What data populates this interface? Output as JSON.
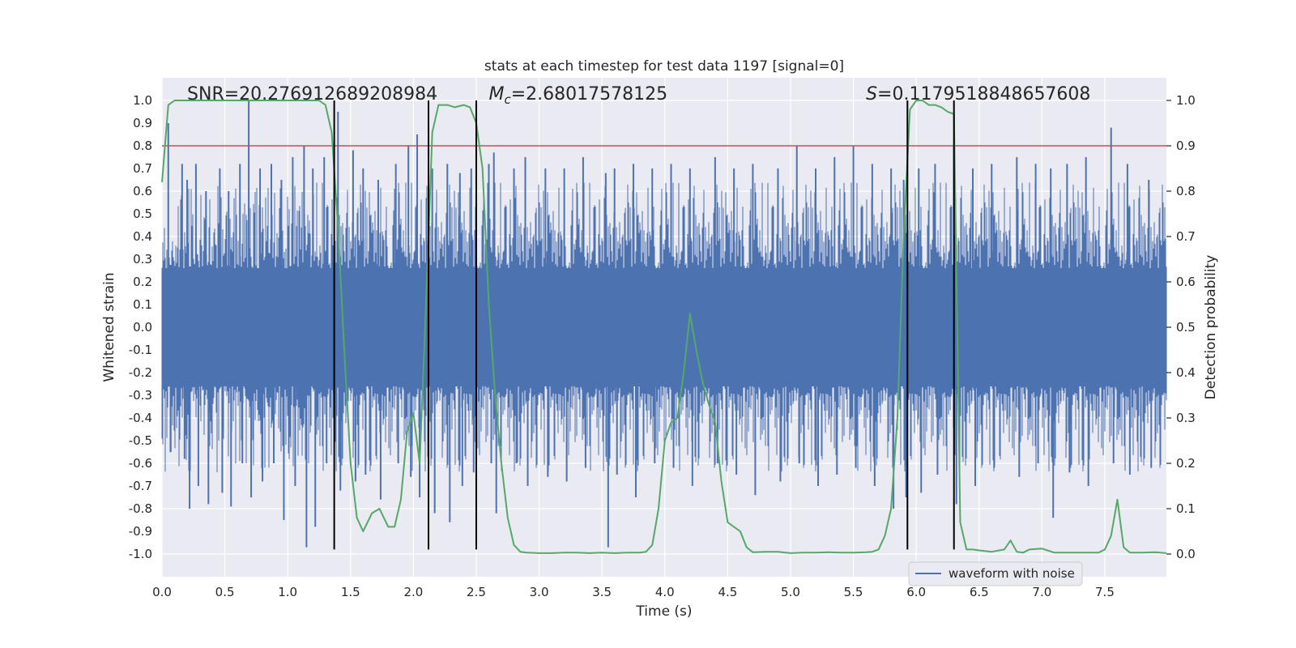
{
  "chart_data": {
    "type": "line",
    "title": "stats at each timestep for test data 1197 [signal=0]",
    "xlabel": "Time (s)",
    "ylabel": "Whitened strain",
    "y2label": "Detection probability",
    "xlim": [
      0.0,
      7.99
    ],
    "ylim": [
      -1.1,
      1.1
    ],
    "y2lim": [
      -0.05,
      1.05
    ],
    "xticks": [
      0.0,
      0.5,
      1.0,
      1.5,
      2.0,
      2.5,
      3.0,
      3.5,
      4.0,
      4.5,
      5.0,
      5.5,
      6.0,
      6.5,
      7.0,
      7.5
    ],
    "xtick_labels": [
      "0.0",
      "0.5",
      "1.0",
      "1.5",
      "2.0",
      "2.5",
      "3.0",
      "3.5",
      "4.0",
      "4.5",
      "5.0",
      "5.5",
      "6.0",
      "6.5",
      "7.0",
      "7.5"
    ],
    "yticks": [
      -1.0,
      -0.9,
      -0.8,
      -0.7,
      -0.6,
      -0.5,
      -0.4,
      -0.3,
      -0.2,
      -0.1,
      0.0,
      0.1,
      0.2,
      0.3,
      0.4,
      0.5,
      0.6,
      0.7,
      0.8,
      0.9,
      1.0
    ],
    "ytick_labels": [
      "-1.0",
      "-0.9",
      "-0.8",
      "-0.7",
      "-0.6",
      "-0.5",
      "-0.4",
      "-0.3",
      "-0.2",
      "-0.1",
      "0.0",
      "0.1",
      "0.2",
      "0.3",
      "0.4",
      "0.5",
      "0.6",
      "0.7",
      "0.8",
      "0.9",
      "1.0"
    ],
    "y2ticks": [
      0.0,
      0.1,
      0.2,
      0.3,
      0.4,
      0.5,
      0.6,
      0.7,
      0.8,
      0.9,
      1.0
    ],
    "y2tick_labels": [
      "0.0",
      "0.1",
      "0.2",
      "0.3",
      "0.4",
      "0.5",
      "0.6",
      "0.7",
      "0.8",
      "0.9",
      "1.0"
    ],
    "grid": true,
    "legend": {
      "position": "lower-right",
      "entries": [
        "waveform with noise"
      ]
    },
    "annotations": [
      {
        "text_plain": "SNR=20.276912689208984",
        "x": 0.2,
        "y": 1.0
      },
      {
        "symbol": "M",
        "subscript": "c",
        "rest": "=2.68017578125",
        "x": 2.6,
        "y": 1.0
      },
      {
        "symbol": "S",
        "subscript": "",
        "rest": "=0.1179518848657608",
        "x": 5.6,
        "y": 1.0
      }
    ],
    "threshold": {
      "axis": "y2",
      "value": 0.9,
      "color": "#c44e52"
    },
    "vertical_lines": [
      1.37,
      2.12,
      2.5,
      5.93,
      6.3
    ],
    "series": [
      {
        "name": "waveform with noise",
        "axis": "y",
        "color": "#4c72b0",
        "envelope_spikes": [
          [
            0.05,
            0.9,
            -0.55
          ],
          [
            0.16,
            0.72,
            -0.58
          ],
          [
            0.2,
            0.65,
            -0.8
          ],
          [
            0.27,
            0.72,
            -0.7
          ],
          [
            0.35,
            0.6,
            -0.78
          ],
          [
            0.46,
            0.7,
            -0.73
          ],
          [
            0.53,
            0.6,
            -0.79
          ],
          [
            0.62,
            0.72,
            -0.6
          ],
          [
            0.69,
            1.0,
            -0.75
          ],
          [
            0.78,
            0.7,
            -0.68
          ],
          [
            0.87,
            0.72,
            -0.6
          ],
          [
            0.95,
            0.65,
            -0.85
          ],
          [
            1.04,
            0.75,
            -0.7
          ],
          [
            1.13,
            0.8,
            -0.97
          ],
          [
            1.2,
            0.7,
            -0.88
          ],
          [
            1.29,
            0.75,
            -0.6
          ],
          [
            1.4,
            0.95,
            -0.72
          ],
          [
            1.52,
            0.78,
            -0.68
          ],
          [
            1.6,
            0.7,
            -0.65
          ],
          [
            1.72,
            0.65,
            -0.76
          ],
          [
            1.86,
            0.72,
            -0.6
          ],
          [
            1.96,
            0.8,
            -0.66
          ],
          [
            2.03,
            0.85,
            -0.75
          ],
          [
            2.15,
            0.7,
            -0.82
          ],
          [
            2.27,
            0.72,
            -0.86
          ],
          [
            2.37,
            0.68,
            -0.7
          ],
          [
            2.46,
            0.7,
            -0.64
          ],
          [
            2.6,
            0.72,
            -0.6
          ],
          [
            2.64,
            0.77,
            -0.82
          ],
          [
            2.8,
            0.7,
            -0.6
          ],
          [
            2.89,
            0.75,
            -0.7
          ],
          [
            3.05,
            0.7,
            -0.66
          ],
          [
            3.2,
            0.7,
            -0.68
          ],
          [
            3.35,
            0.75,
            -0.62
          ],
          [
            3.53,
            0.68,
            -0.97
          ],
          [
            3.6,
            0.7,
            -0.65
          ],
          [
            3.75,
            0.72,
            -0.75
          ],
          [
            3.9,
            0.7,
            -0.6
          ],
          [
            4.05,
            0.72,
            -0.62
          ],
          [
            4.2,
            0.7,
            -0.7
          ],
          [
            4.4,
            0.75,
            -0.6
          ],
          [
            4.55,
            0.7,
            -0.65
          ],
          [
            4.7,
            0.72,
            -0.74
          ],
          [
            4.9,
            0.7,
            -0.68
          ],
          [
            5.05,
            0.8,
            -0.6
          ],
          [
            5.2,
            0.7,
            -0.7
          ],
          [
            5.35,
            0.75,
            -0.65
          ],
          [
            5.5,
            0.8,
            -0.62
          ],
          [
            5.65,
            0.72,
            -0.7
          ],
          [
            5.8,
            0.7,
            -0.8
          ],
          [
            5.9,
            0.65,
            -0.75
          ],
          [
            6.02,
            0.7,
            -0.73
          ],
          [
            6.15,
            0.72,
            -0.65
          ],
          [
            6.3,
            0.8,
            -0.78
          ],
          [
            6.45,
            0.7,
            -0.7
          ],
          [
            6.6,
            0.72,
            -0.62
          ],
          [
            6.8,
            0.75,
            -0.66
          ],
          [
            6.95,
            0.72,
            -0.6
          ],
          [
            7.07,
            0.7,
            -0.84
          ],
          [
            7.2,
            0.72,
            -0.64
          ],
          [
            7.35,
            0.75,
            -0.7
          ],
          [
            7.55,
            0.88,
            -0.6
          ],
          [
            7.68,
            0.72,
            -0.65
          ],
          [
            7.85,
            0.65,
            -0.62
          ]
        ]
      },
      {
        "name": "detection probability",
        "axis": "y2",
        "color": "#55a868",
        "x": [
          0.0,
          0.05,
          0.1,
          0.15,
          0.2,
          0.3,
          0.4,
          0.5,
          0.6,
          0.7,
          0.8,
          0.9,
          1.0,
          1.1,
          1.2,
          1.25,
          1.3,
          1.35,
          1.4,
          1.45,
          1.5,
          1.55,
          1.6,
          1.67,
          1.73,
          1.8,
          1.85,
          1.9,
          1.95,
          2.0,
          2.05,
          2.1,
          2.15,
          2.2,
          2.27,
          2.33,
          2.4,
          2.45,
          2.5,
          2.55,
          2.6,
          2.65,
          2.7,
          2.75,
          2.8,
          2.85,
          2.9,
          3.0,
          3.1,
          3.2,
          3.3,
          3.4,
          3.5,
          3.6,
          3.7,
          3.8,
          3.85,
          3.9,
          3.95,
          4.0,
          4.05,
          4.1,
          4.15,
          4.2,
          4.25,
          4.3,
          4.35,
          4.4,
          4.45,
          4.5,
          4.55,
          4.6,
          4.65,
          4.7,
          4.8,
          4.9,
          5.0,
          5.1,
          5.2,
          5.3,
          5.4,
          5.5,
          5.6,
          5.65,
          5.7,
          5.75,
          5.8,
          5.85,
          5.9,
          5.95,
          6.0,
          6.05,
          6.1,
          6.15,
          6.2,
          6.25,
          6.3,
          6.35,
          6.4,
          6.45,
          6.5,
          6.6,
          6.7,
          6.75,
          6.8,
          6.85,
          6.9,
          7.0,
          7.1,
          7.2,
          7.3,
          7.4,
          7.45,
          7.5,
          7.55,
          7.6,
          7.65,
          7.7,
          7.8,
          7.9,
          7.99
        ],
        "y": [
          0.82,
          0.99,
          1.0,
          1.0,
          1.0,
          1.0,
          1.0,
          1.0,
          1.0,
          1.0,
          1.0,
          1.0,
          1.0,
          1.0,
          1.0,
          1.0,
          0.99,
          0.93,
          0.72,
          0.45,
          0.2,
          0.08,
          0.05,
          0.09,
          0.1,
          0.06,
          0.06,
          0.12,
          0.27,
          0.31,
          0.2,
          0.55,
          0.93,
          0.99,
          0.99,
          0.985,
          0.99,
          0.985,
          0.95,
          0.85,
          0.55,
          0.35,
          0.2,
          0.08,
          0.02,
          0.005,
          0.003,
          0.002,
          0.002,
          0.003,
          0.003,
          0.002,
          0.003,
          0.002,
          0.003,
          0.003,
          0.005,
          0.02,
          0.1,
          0.25,
          0.29,
          0.3,
          0.4,
          0.53,
          0.45,
          0.38,
          0.33,
          0.29,
          0.16,
          0.07,
          0.06,
          0.05,
          0.015,
          0.004,
          0.005,
          0.005,
          0.002,
          0.003,
          0.003,
          0.004,
          0.003,
          0.003,
          0.004,
          0.005,
          0.01,
          0.04,
          0.1,
          0.3,
          0.7,
          0.98,
          1.0,
          1.0,
          0.99,
          0.99,
          0.985,
          0.975,
          0.97,
          0.07,
          0.01,
          0.01,
          0.008,
          0.005,
          0.01,
          0.03,
          0.005,
          0.003,
          0.01,
          0.012,
          0.003,
          0.003,
          0.003,
          0.003,
          0.003,
          0.01,
          0.04,
          0.12,
          0.015,
          0.003,
          0.003,
          0.004,
          0.002
        ]
      }
    ]
  }
}
